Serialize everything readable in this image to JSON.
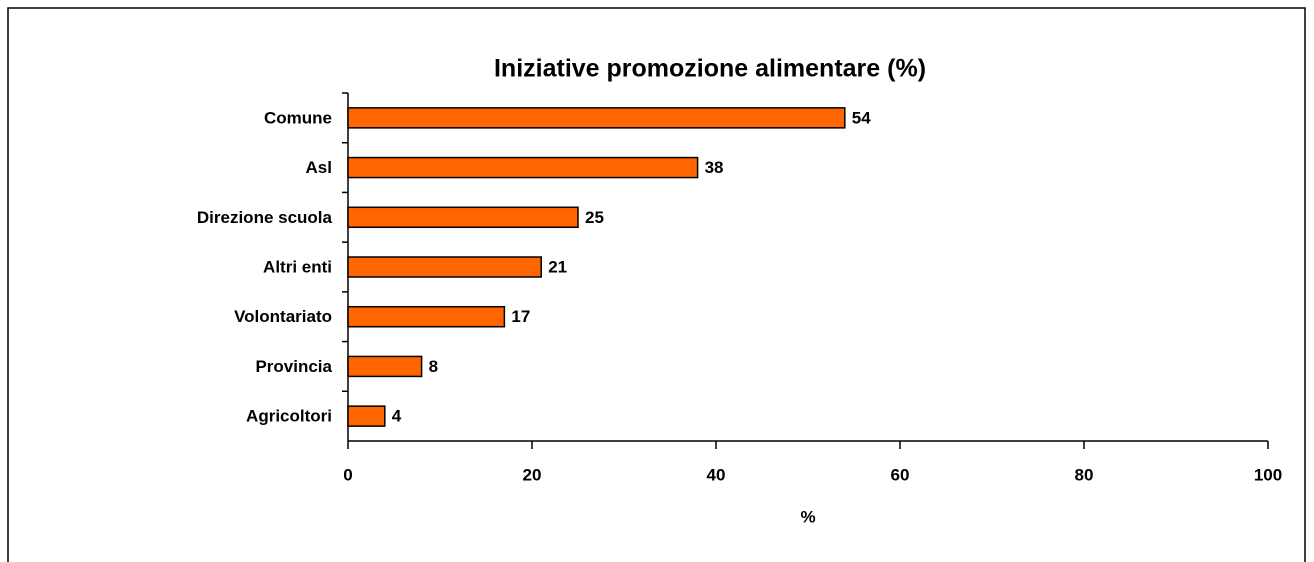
{
  "chart_data": {
    "type": "bar",
    "orientation": "horizontal",
    "title": "Iniziative promozione alimentare (%)",
    "x_label": "%",
    "categories": [
      "Comune",
      "Asl",
      "Direzione scuola",
      "Altri enti",
      "Volontariato",
      "Provincia",
      "Agricoltori"
    ],
    "values": [
      54,
      38,
      25,
      21,
      17,
      8,
      4
    ],
    "color": "#ff6600",
    "xlim": [
      0,
      100
    ],
    "xticks": [
      0,
      20,
      40,
      60,
      80,
      100
    ],
    "grid": false
  }
}
